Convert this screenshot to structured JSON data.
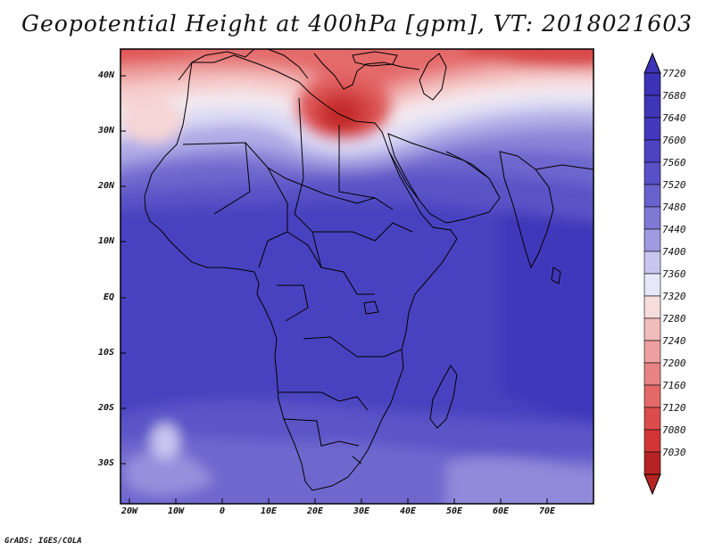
{
  "title": "Geopotential Height at 400hPa [gpm], VT: 2018021603",
  "credit": "GrADS: IGES/COLA",
  "lat_labels": [
    "40N",
    "30N",
    "20N",
    "10N",
    "EQ",
    "10S",
    "20S",
    "30S"
  ],
  "lon_labels": [
    "20W",
    "10W",
    "0",
    "10E",
    "20E",
    "30E",
    "40E",
    "50E",
    "60E",
    "70E"
  ],
  "colorbar": {
    "labels": [
      "7720",
      "7680",
      "7640",
      "7600",
      "7560",
      "7520",
      "7480",
      "7440",
      "7400",
      "7360",
      "7320",
      "7280",
      "7240",
      "7200",
      "7160",
      "7120",
      "7080",
      "7030"
    ],
    "colors": [
      "#3b32b5",
      "#3e35b7",
      "#4339be",
      "#4c42c2",
      "#5850c6",
      "#6a62cc",
      "#7f79d4",
      "#a09be0",
      "#c8c5ee",
      "#e8e7f8",
      "#f7dcdc",
      "#f2bcbc",
      "#ee9f9f",
      "#e88383",
      "#e46868",
      "#dd4c4c",
      "#d13535",
      "#b52323"
    ]
  },
  "map": {
    "field": "Geopotential Height",
    "level": "400hPa",
    "units": "gpm",
    "valid_time": "2018021603",
    "lon_range": [
      -22,
      80
    ],
    "lat_range": [
      -37,
      45
    ]
  }
}
